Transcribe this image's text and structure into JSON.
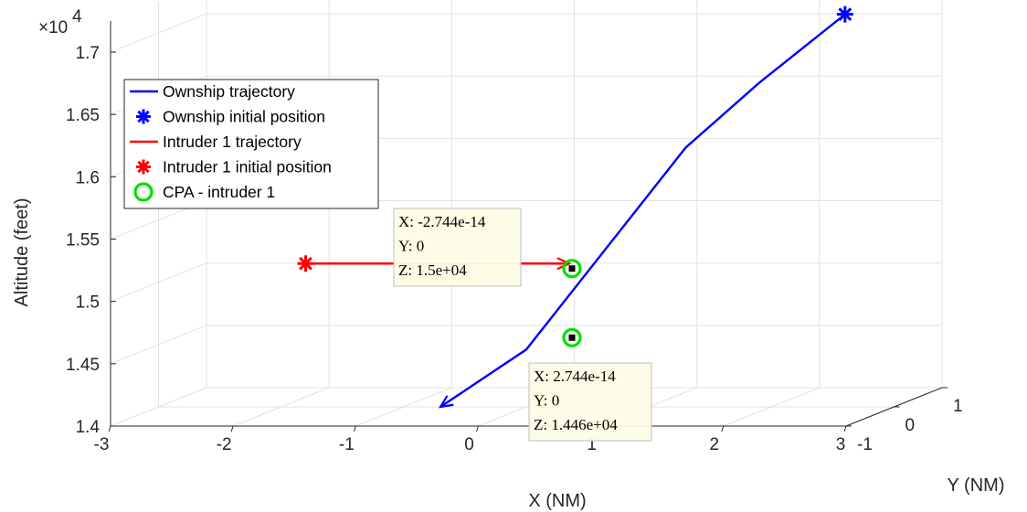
{
  "chart_data": {
    "type": "line3d",
    "xlabel": "X (NM)",
    "ylabel": "Y (NM)",
    "zlabel": "Altitude (feet)",
    "z_multiplier_label": "×10",
    "z_multiplier_exponent": "4",
    "x_ticks": [
      "-3",
      "-2",
      "-1",
      "0",
      "1",
      "2",
      "3"
    ],
    "y_ticks": [
      "-1",
      "0",
      "1"
    ],
    "z_ticks": [
      "1.4",
      "1.45",
      "1.5",
      "1.55",
      "1.6",
      "1.65",
      "1.7"
    ],
    "xlim": [
      -3,
      3
    ],
    "ylim": [
      -1,
      1
    ],
    "zlim": [
      14000,
      17250
    ],
    "grid": true,
    "legend_position": "top-left",
    "legend": [
      {
        "label": "Ownship trajectory",
        "marker": "line",
        "color": "#0000ff"
      },
      {
        "label": "Ownship initial position",
        "marker": "asterisk",
        "color": "#0000ff"
      },
      {
        "label": "Intruder 1 trajectory",
        "marker": "line",
        "color": "#ff0000"
      },
      {
        "label": "Intruder 1 initial position",
        "marker": "asterisk",
        "color": "#ff0000"
      },
      {
        "label": "CPA - intruder 1",
        "marker": "circle",
        "color": "#00e000"
      }
    ],
    "series": [
      {
        "name": "Ownship trajectory",
        "color": "#0000ff",
        "points": [
          {
            "x": 2.6,
            "y": 0,
            "z": 17150
          },
          {
            "x": 1.9,
            "y": 0,
            "z": 16600
          },
          {
            "x": 1.3,
            "y": 0,
            "z": 16080
          },
          {
            "x": 0,
            "y": 0,
            "z": 14460
          },
          {
            "x": -0.7,
            "y": 0,
            "z": 14000
          }
        ]
      },
      {
        "name": "Intruder 1 trajectory",
        "color": "#ff0000",
        "points": [
          {
            "x": -1.8,
            "y": 0,
            "z": 15150
          },
          {
            "x": 0.35,
            "y": 0,
            "z": 15150
          }
        ]
      }
    ],
    "initial_positions": [
      {
        "series": "Ownship",
        "x": 2.6,
        "y": 0,
        "z": 17150,
        "color": "#0000ff"
      },
      {
        "series": "Intruder 1",
        "x": -1.8,
        "y": 0,
        "z": 15150,
        "color": "#ff0000"
      }
    ],
    "cpa_points": [
      {
        "x": 0,
        "y": 0,
        "z": 15000
      },
      {
        "x": 0,
        "y": 0,
        "z": 14460
      }
    ],
    "datatips": [
      {
        "lines": [
          "X: -2.744e-14",
          "Y: 0",
          "Z: 1.5e+04"
        ]
      },
      {
        "lines": [
          "X: 2.744e-14",
          "Y: 0",
          "Z: 1.446e+04"
        ]
      }
    ]
  }
}
